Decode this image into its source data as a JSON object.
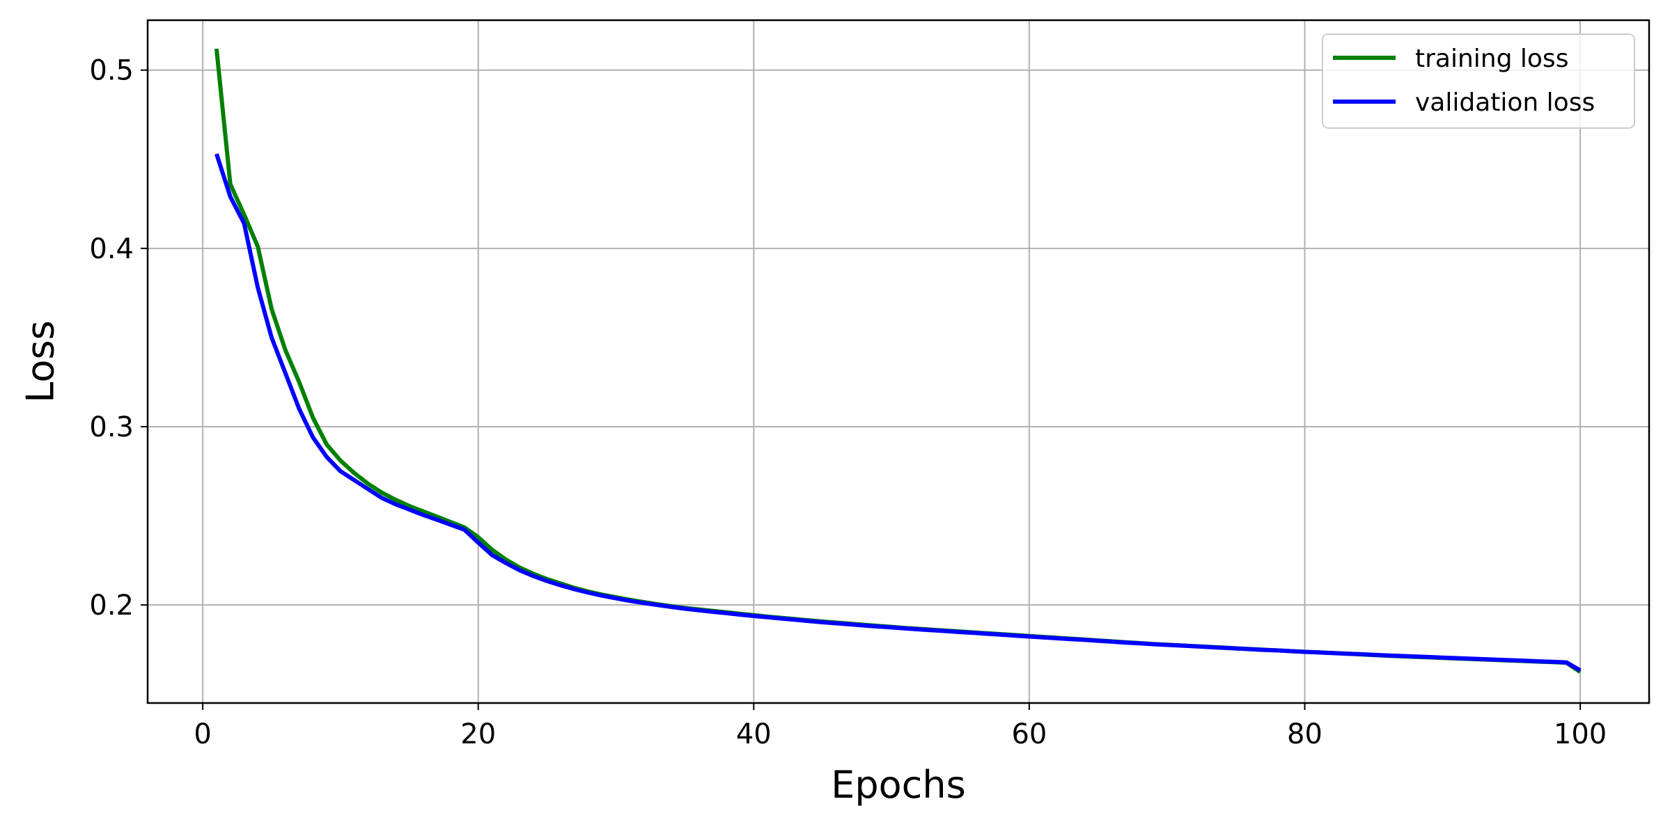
{
  "chart_data": {
    "type": "line",
    "title": "",
    "xlabel": "Epochs",
    "ylabel": "Loss",
    "xlim": [
      -4,
      105
    ],
    "ylim": [
      0.145,
      0.528
    ],
    "xticks": [
      0,
      20,
      40,
      60,
      80,
      100
    ],
    "yticks": [
      0.2,
      0.3,
      0.4,
      0.5
    ],
    "xtick_labels": [
      "0",
      "20",
      "40",
      "60",
      "80",
      "100"
    ],
    "ytick_labels": [
      "0.2",
      "0.3",
      "0.4",
      "0.5"
    ],
    "grid": true,
    "legend_position": "top-right",
    "x": [
      1,
      2,
      3,
      4,
      5,
      6,
      7,
      8,
      9,
      10,
      11,
      12,
      13,
      14,
      15,
      16,
      17,
      18,
      19,
      20,
      21,
      22,
      23,
      24,
      25,
      26,
      27,
      28,
      29,
      30,
      31,
      32,
      33,
      34,
      35,
      36,
      37,
      38,
      39,
      40,
      41,
      42,
      43,
      44,
      45,
      46,
      47,
      48,
      49,
      50,
      51,
      52,
      53,
      54,
      55,
      56,
      57,
      58,
      59,
      60,
      61,
      62,
      63,
      64,
      65,
      66,
      67,
      68,
      69,
      70,
      71,
      72,
      73,
      74,
      75,
      76,
      77,
      78,
      79,
      80,
      81,
      82,
      83,
      84,
      85,
      86,
      87,
      88,
      89,
      90,
      91,
      92,
      93,
      94,
      95,
      96,
      97,
      98,
      99,
      100
    ],
    "series": [
      {
        "name": "training loss",
        "color": "#008000",
        "values": [
          0.512,
          0.436,
          0.419,
          0.401,
          0.366,
          0.343,
          0.325,
          0.305,
          0.29,
          0.281,
          0.274,
          0.268,
          0.263,
          0.259,
          0.2555,
          0.2525,
          0.2495,
          0.2465,
          0.2435,
          0.238,
          0.231,
          0.2255,
          0.221,
          0.2175,
          0.2145,
          0.212,
          0.2095,
          0.2075,
          0.2058,
          0.2043,
          0.2029,
          0.2016,
          0.2004,
          0.1993,
          0.1983,
          0.1975,
          0.1967,
          0.1959,
          0.1951,
          0.1943,
          0.1935,
          0.1928,
          0.1921,
          0.1914,
          0.1907,
          0.1901,
          0.1895,
          0.1889,
          0.1883,
          0.1877,
          0.1871,
          0.1866,
          0.1861,
          0.1856,
          0.1851,
          0.1846,
          0.1841,
          0.1836,
          0.1831,
          0.1826,
          0.1821,
          0.1816,
          0.1811,
          0.1806,
          0.1801,
          0.1796,
          0.1791,
          0.1786,
          0.1781,
          0.1777,
          0.1773,
          0.1769,
          0.1765,
          0.1761,
          0.1757,
          0.1753,
          0.1749,
          0.1745,
          0.1741,
          0.1737,
          0.1734,
          0.1731,
          0.1727,
          0.1723,
          0.1719,
          0.1715,
          0.1712,
          0.1709,
          0.1706,
          0.1703,
          0.17,
          0.1697,
          0.1694,
          0.1691,
          0.1688,
          0.1685,
          0.1682,
          0.1679,
          0.1676,
          0.1624
        ]
      },
      {
        "name": "validation loss",
        "color": "#0000ff",
        "values": [
          0.453,
          0.429,
          0.414,
          0.378,
          0.35,
          0.33,
          0.31,
          0.294,
          0.283,
          0.275,
          0.27,
          0.265,
          0.26,
          0.2565,
          0.2535,
          0.2505,
          0.2478,
          0.245,
          0.2422,
          0.235,
          0.228,
          0.2235,
          0.2195,
          0.2162,
          0.2134,
          0.211,
          0.2088,
          0.2069,
          0.2052,
          0.2037,
          0.2023,
          0.2011,
          0.2,
          0.1989,
          0.1979,
          0.197,
          0.1962,
          0.1954,
          0.1946,
          0.1938,
          0.1931,
          0.1924,
          0.1917,
          0.191,
          0.1903,
          0.1897,
          0.1891,
          0.1885,
          0.1879,
          0.1874,
          0.1868,
          0.1863,
          0.1858,
          0.1853,
          0.1848,
          0.1843,
          0.1838,
          0.1833,
          0.1828,
          0.1823,
          0.1818,
          0.1813,
          0.1808,
          0.1804,
          0.1799,
          0.1794,
          0.1789,
          0.1785,
          0.178,
          0.1776,
          0.1772,
          0.1768,
          0.1764,
          0.176,
          0.1756,
          0.1752,
          0.1748,
          0.1745,
          0.1741,
          0.1737,
          0.1734,
          0.173,
          0.1727,
          0.1724,
          0.172,
          0.1717,
          0.1714,
          0.1711,
          0.1708,
          0.1705,
          0.1702,
          0.1699,
          0.1696,
          0.1693,
          0.169,
          0.1687,
          0.1684,
          0.1681,
          0.1678,
          0.1633
        ]
      }
    ]
  }
}
